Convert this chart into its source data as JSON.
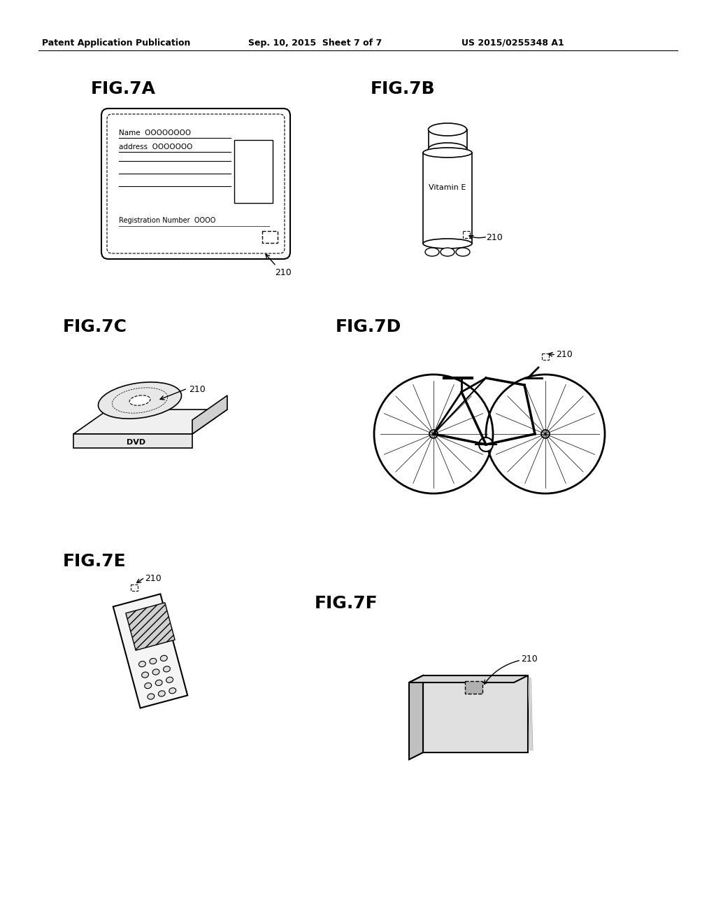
{
  "bg_color": "#ffffff",
  "header_left": "Patent Application Publication",
  "header_mid": "Sep. 10, 2015  Sheet 7 of 7",
  "header_right": "US 2015/0255348 A1",
  "fig_labels": [
    "FIG.7A",
    "FIG.7B",
    "FIG.7C",
    "FIG.7D",
    "FIG.7E",
    "FIG.7F"
  ],
  "label_210": "210",
  "vitamin_e_text": "Vitamin E",
  "dvd_text": "DVD",
  "name_text": "Name  OOOOOOOO",
  "address_text": "address  OOOOOOO",
  "reg_text": "Registration Number  OOOO"
}
